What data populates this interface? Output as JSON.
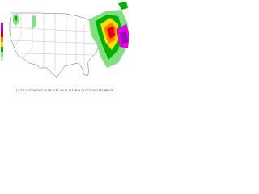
{
  "caption": "12 UTC OCT 29 2012  00 HR FCST  VALID 12Z MON 29 OCT 2012  SFC PRECIP"
}
